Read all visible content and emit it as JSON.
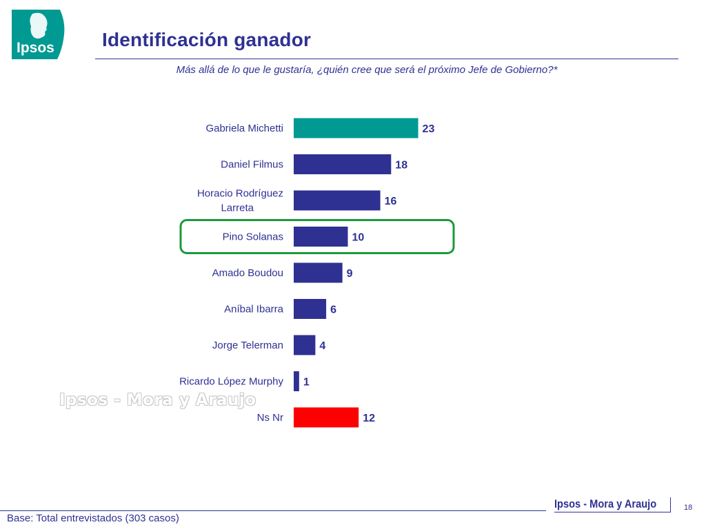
{
  "header": {
    "logo_text": "Ipsos",
    "title": "Identificación ganador",
    "subtitle": "Más allá de lo que le gustaría, ¿quién cree que será el próximo Jefe de Gobierno?*"
  },
  "colors": {
    "brand_blue": "#2e3192",
    "logo_teal": "#009a93",
    "bar_default": "#2e3192",
    "bar_highlight_teal": "#009a93",
    "bar_nsnr_red": "#ff0000",
    "highlight_box": "#1a9a3a"
  },
  "chart_data": {
    "type": "bar",
    "orientation": "horizontal",
    "categories": [
      "Gabriela Michetti",
      "Daniel Filmus",
      "Horacio Rodríguez Larreta",
      "Pino Solanas",
      "Amado Boudou",
      "Aníbal Ibarra",
      "Jorge Telerman",
      "Ricardo López Murphy",
      "Ns Nr"
    ],
    "category_lines": [
      [
        "Gabriela Michetti"
      ],
      [
        "Daniel Filmus"
      ],
      [
        "Horacio Rodríguez",
        "Larreta"
      ],
      [
        "Pino Solanas"
      ],
      [
        "Amado Boudou"
      ],
      [
        "Aníbal Ibarra"
      ],
      [
        "Jorge Telerman"
      ],
      [
        "Ricardo López Murphy"
      ],
      [
        "Ns Nr"
      ]
    ],
    "values": [
      23,
      18,
      16,
      10,
      9,
      6,
      4,
      1,
      12
    ],
    "bar_colors": [
      "#009a93",
      "#2e3192",
      "#2e3192",
      "#2e3192",
      "#2e3192",
      "#2e3192",
      "#2e3192",
      "#2e3192",
      "#ff0000"
    ],
    "highlighted_category": "Pino Solanas",
    "data_labels": true,
    "xlim": [
      0,
      25
    ],
    "grid": false,
    "legend": "none"
  },
  "watermark": "Ipsos - Mora y Araujo",
  "footer": {
    "brand": "Ipsos - Mora y Araujo",
    "page_number": "18",
    "base_note": "Base: Total entrevistados (303 casos)"
  }
}
